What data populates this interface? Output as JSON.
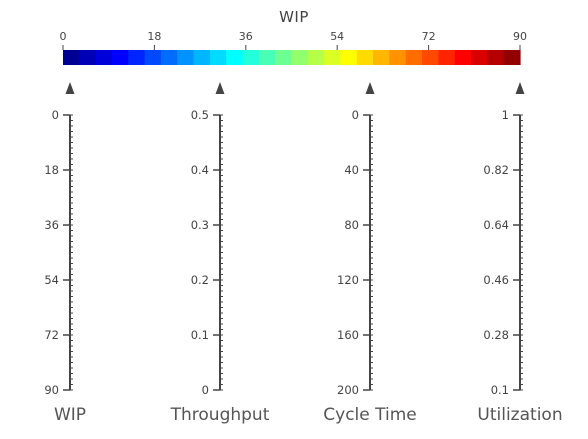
{
  "chart_data": {
    "type": "parallel_coordinates",
    "colorbar": {
      "title": "WIP",
      "colormap": "jet",
      "range": [
        0,
        90
      ],
      "ticks": [
        "0",
        "18",
        "36",
        "54",
        "72",
        "90"
      ]
    },
    "axes": [
      {
        "label": "WIP",
        "range": [
          0,
          90
        ],
        "reversed": true,
        "ticks": [
          "0",
          "18",
          "36",
          "54",
          "72",
          "90"
        ]
      },
      {
        "label": "Throughput",
        "range": [
          0,
          0.5
        ],
        "reversed": false,
        "ticks": [
          "0.5",
          "0.4",
          "0.3",
          "0.2",
          "0.1",
          "0"
        ]
      },
      {
        "label": "Cycle Time",
        "range": [
          0,
          200
        ],
        "reversed": true,
        "ticks": [
          "0",
          "40",
          "80",
          "120",
          "160",
          "200"
        ]
      },
      {
        "label": "Utilization",
        "range": [
          0.1,
          1
        ],
        "reversed": false,
        "ticks": [
          "1",
          "0.82",
          "0.64",
          "0.46",
          "0.28",
          "0.1"
        ]
      }
    ],
    "series": []
  }
}
